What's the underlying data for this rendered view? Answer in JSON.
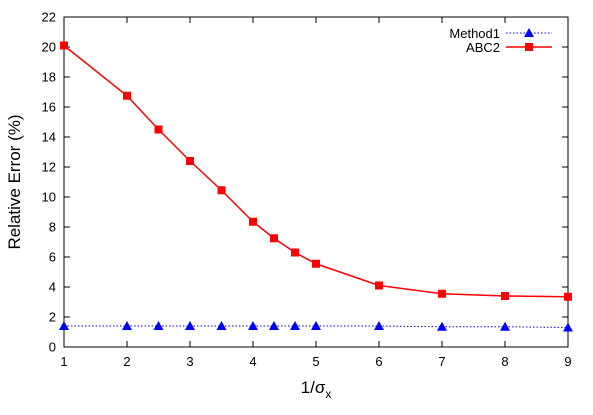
{
  "chart_data": {
    "type": "line",
    "xlabel_main": "1/σ",
    "xlabel_sub": "x",
    "ylabel": "Relative Error (%)",
    "xlim": [
      1,
      9
    ],
    "ylim": [
      0,
      22
    ],
    "xticks": [
      1,
      2,
      3,
      4,
      5,
      6,
      7,
      8,
      9
    ],
    "yticks": [
      0,
      2,
      4,
      6,
      8,
      10,
      12,
      14,
      16,
      18,
      20,
      22
    ],
    "grid": false,
    "legend_position": "top-right",
    "series": [
      {
        "name": "Method1",
        "color": "#0000ff",
        "line_style": "dotted",
        "marker": "triangle",
        "x": [
          1,
          2,
          2.5,
          3,
          3.5,
          4,
          4.333,
          4.667,
          5,
          6,
          7,
          8,
          9
        ],
        "y": [
          1.4,
          1.4,
          1.4,
          1.4,
          1.4,
          1.4,
          1.4,
          1.4,
          1.4,
          1.4,
          1.35,
          1.35,
          1.3
        ]
      },
      {
        "name": "ABC2",
        "color": "#ff0000",
        "line_style": "solid",
        "marker": "square",
        "x": [
          1,
          2,
          2.5,
          3,
          3.5,
          4,
          4.333,
          4.667,
          5,
          6,
          7,
          8,
          9
        ],
        "y": [
          20.1,
          16.75,
          14.5,
          12.4,
          10.45,
          8.35,
          7.25,
          6.3,
          5.55,
          4.1,
          3.55,
          3.4,
          3.35
        ]
      }
    ]
  }
}
